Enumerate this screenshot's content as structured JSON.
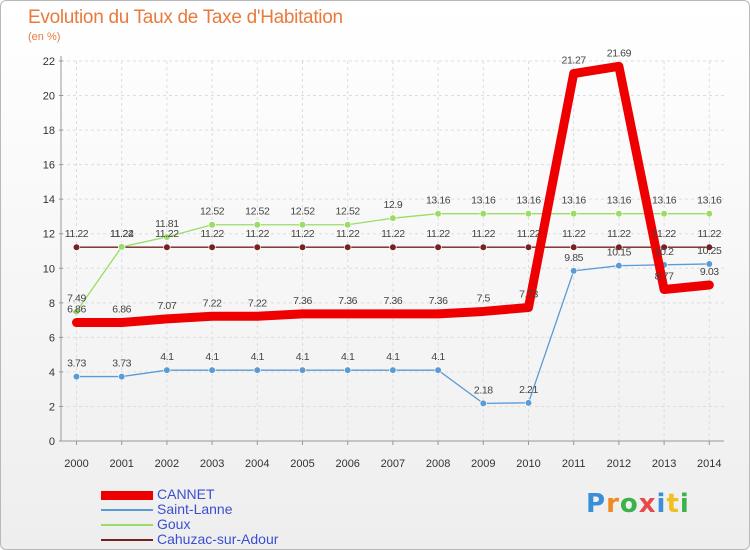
{
  "chart_data": {
    "type": "line",
    "title": "Evolution du Taux de Taxe d'Habitation",
    "subtitle": "(en %)",
    "x": [
      "2000",
      "2001",
      "2002",
      "2003",
      "2004",
      "2005",
      "2006",
      "2007",
      "2008",
      "2009",
      "2010",
      "2011",
      "2012",
      "2013",
      "2014"
    ],
    "ylim": [
      0,
      22
    ],
    "yticks": [
      "0",
      "2",
      "4",
      "6",
      "8",
      "10",
      "12",
      "14",
      "16",
      "18",
      "20",
      "22"
    ],
    "grid": true,
    "legend_position": "bottom-left",
    "series": [
      {
        "name": "CANNET",
        "color": "#ee0000",
        "values": [
          6.86,
          6.86,
          7.07,
          7.22,
          7.22,
          7.36,
          7.36,
          7.36,
          7.36,
          7.5,
          7.73,
          21.27,
          21.69,
          8.77,
          9.03
        ],
        "labels": [
          "6.86",
          "6.86",
          "7.07",
          "7.22",
          "7.22",
          "7.36",
          "7.36",
          "7.36",
          "7.36",
          "7.5",
          "7.73",
          "21.27",
          "21.69",
          "8.77",
          "9.03"
        ]
      },
      {
        "name": "Saint-Lanne",
        "color": "#5b9bd5",
        "values": [
          3.73,
          3.73,
          4.1,
          4.1,
          4.1,
          4.1,
          4.1,
          4.1,
          4.1,
          2.18,
          2.21,
          9.85,
          10.15,
          10.2,
          10.25
        ],
        "labels": [
          "3.73",
          "3.73",
          "4.1",
          "4.1",
          "4.1",
          "4.1",
          "4.1",
          "4.1",
          "4.1",
          "2.18",
          "2.21",
          "9.85",
          "10.15",
          "10.2",
          "10.25"
        ]
      },
      {
        "name": "Goux",
        "color": "#99dd66",
        "values": [
          7.49,
          11.24,
          11.81,
          12.52,
          12.52,
          12.52,
          12.52,
          12.9,
          13.16,
          13.16,
          13.16,
          13.16,
          13.16,
          13.16,
          13.16
        ],
        "labels": [
          "7.49",
          "11.24",
          "11.81",
          "12.52",
          "12.52",
          "12.52",
          "12.52",
          "12.9",
          "13.16",
          "13.16",
          "13.16",
          "13.16",
          "13.16",
          "13.16",
          "13.16"
        ]
      },
      {
        "name": "Cahuzac-sur-Adour",
        "color": "#772222",
        "values": [
          11.22,
          11.22,
          11.22,
          11.22,
          11.22,
          11.22,
          11.22,
          11.22,
          11.22,
          11.22,
          11.22,
          11.22,
          11.22,
          11.22,
          11.22
        ],
        "labels": [
          "11.22",
          "11.22",
          "11.22",
          "11.22",
          "11.22",
          "11.22",
          "11.22",
          "11.22",
          "11.22",
          "11.22",
          "11.22",
          "11.22",
          "11.22",
          "11.22",
          "11.22"
        ]
      }
    ]
  },
  "logo": {
    "text": "Proxiti",
    "colors": [
      "#3b8fd9",
      "#f08a22",
      "#3bb34a",
      "#e84a4a",
      "#3b8fd9",
      "#f0c020",
      "#3bb34a"
    ]
  }
}
